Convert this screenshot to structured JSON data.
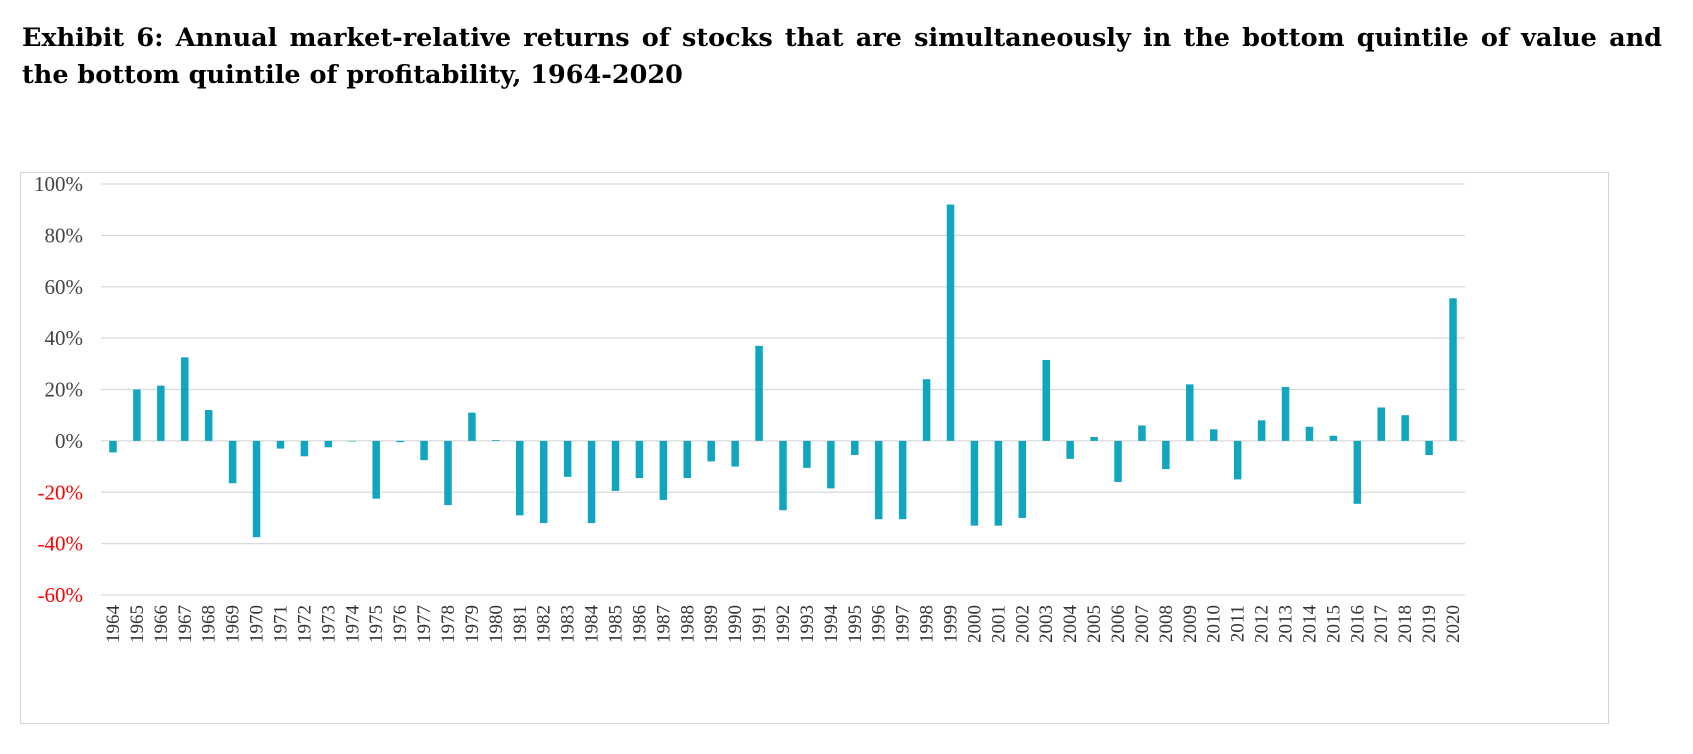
{
  "title": "Exhibit 6: Annual market-relative returns of stocks that are simultaneously in the bottom quintile of value and the bottom quintile of profitability, 1964-2020",
  "colors": {
    "bar": "#12a5c0",
    "grid": "#d9d9d9",
    "pos_label": "#444444",
    "neg_label": "#ff0000"
  },
  "chart_data": {
    "type": "bar",
    "title": "Exhibit 6: Annual market-relative returns of stocks that are simultaneously in the bottom quintile of value and the bottom quintile of profitability, 1964-2020",
    "xlabel": "",
    "ylabel": "",
    "ylim": [
      -60,
      100
    ],
    "yticks": [
      100,
      80,
      60,
      40,
      20,
      0,
      -20,
      -40,
      -60
    ],
    "ytick_labels": [
      "100%",
      "80%",
      "60%",
      "40%",
      "20%",
      "0%",
      "-20%",
      "-40%",
      "-60%"
    ],
    "grid": true,
    "categories": [
      "1964",
      "1965",
      "1966",
      "1967",
      "1968",
      "1969",
      "1970",
      "1971",
      "1972",
      "1973",
      "1974",
      "1975",
      "1976",
      "1977",
      "1978",
      "1979",
      "1980",
      "1981",
      "1982",
      "1983",
      "1984",
      "1985",
      "1986",
      "1987",
      "1988",
      "1989",
      "1990",
      "1991",
      "1992",
      "1993",
      "1994",
      "1995",
      "1996",
      "1997",
      "1998",
      "1999",
      "2000",
      "2001",
      "2002",
      "2003",
      "2004",
      "2005",
      "2006",
      "2007",
      "2008",
      "2009",
      "2010",
      "2011",
      "2012",
      "2013",
      "2014",
      "2015",
      "2016",
      "2017",
      "2018",
      "2019",
      "2020"
    ],
    "values": [
      -4.5,
      20,
      21.5,
      32.5,
      12,
      -16.5,
      -37.5,
      -3,
      -6,
      -2.5,
      0,
      -22.5,
      -0.5,
      -7.5,
      -25,
      11,
      0.3,
      -29,
      -32,
      -14,
      -32,
      -19.5,
      -14.5,
      -23,
      -14.5,
      -8,
      -10,
      37,
      -27,
      -10.5,
      -18.5,
      -5.5,
      -30.5,
      -30.5,
      24,
      92,
      -33,
      -33,
      -30,
      31.5,
      -7,
      1.5,
      -16,
      6,
      -11,
      22,
      4.5,
      -15,
      8,
      21,
      5.5,
      2,
      -24.5,
      13,
      10,
      -5.5,
      55.5
    ]
  }
}
